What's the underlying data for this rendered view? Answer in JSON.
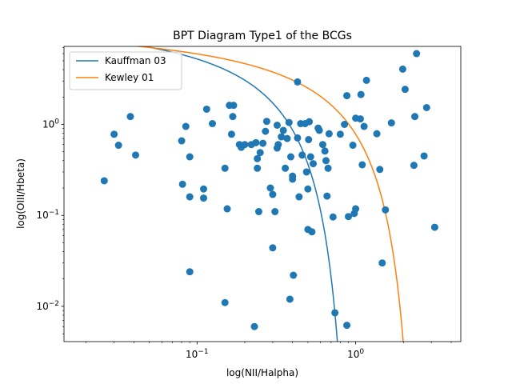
{
  "chart_data": {
    "type": "scatter",
    "title": "BPT Diagram Type1 of the BCGs",
    "xlabel": "log(NII/Halpha)",
    "ylabel": "log(OIII/Hbeta)",
    "xscale": "log",
    "yscale": "log",
    "xlim": [
      0.0145,
      4.6
    ],
    "ylim": [
      0.0041,
      7.2
    ],
    "x_ticks": [
      {
        "value": 0.1,
        "base": "10",
        "exp": "−1"
      },
      {
        "value": 1,
        "base": "10",
        "exp": "0"
      }
    ],
    "y_ticks": [
      {
        "value": 0.01,
        "base": "10",
        "exp": "−2"
      },
      {
        "value": 0.1,
        "base": "10",
        "exp": "−1"
      },
      {
        "value": 1,
        "base": "10",
        "exp": "0"
      }
    ],
    "legend": {
      "position": "top-left",
      "entries": [
        {
          "label": "Kauffman 03",
          "color": "#1f77b4"
        },
        {
          "label": "Kewley 01",
          "color": "#ff7f0e"
        }
      ]
    },
    "curves": [
      {
        "label": "Kauffman 03",
        "color": "#1f77b4",
        "a": 0.61,
        "b": 0.05,
        "c": 1.3
      },
      {
        "label": "Kewley 01",
        "color": "#ff7f0e",
        "a": 0.61,
        "b": 0.47,
        "c": 1.19
      }
    ],
    "points_color": "#1f77b4",
    "points": [
      [
        0.026,
        0.24
      ],
      [
        0.03,
        0.78
      ],
      [
        0.032,
        0.59
      ],
      [
        0.038,
        1.22
      ],
      [
        0.041,
        0.46
      ],
      [
        0.08,
        0.66
      ],
      [
        0.081,
        0.22
      ],
      [
        0.085,
        0.95
      ],
      [
        0.09,
        0.44
      ],
      [
        0.09,
        0.16
      ],
      [
        0.09,
        0.024
      ],
      [
        0.11,
        0.195
      ],
      [
        0.11,
        0.155
      ],
      [
        0.115,
        1.47
      ],
      [
        0.125,
        1.02
      ],
      [
        0.15,
        0.33
      ],
      [
        0.15,
        0.011
      ],
      [
        0.155,
        0.118
      ],
      [
        0.16,
        1.62
      ],
      [
        0.165,
        0.78
      ],
      [
        0.168,
        1.22
      ],
      [
        0.17,
        1.62
      ],
      [
        0.185,
        0.6
      ],
      [
        0.19,
        0.56
      ],
      [
        0.2,
        0.6
      ],
      [
        0.22,
        0.6
      ],
      [
        0.23,
        0.006
      ],
      [
        0.235,
        0.63
      ],
      [
        0.24,
        0.42
      ],
      [
        0.24,
        0.33
      ],
      [
        0.245,
        0.11
      ],
      [
        0.25,
        0.49
      ],
      [
        0.26,
        0.62
      ],
      [
        0.27,
        0.84
      ],
      [
        0.275,
        1.08
      ],
      [
        0.29,
        0.2
      ],
      [
        0.3,
        0.17
      ],
      [
        0.3,
        0.044
      ],
      [
        0.31,
        0.11
      ],
      [
        0.32,
        0.98
      ],
      [
        0.32,
        0.55
      ],
      [
        0.325,
        0.6
      ],
      [
        0.34,
        0.73
      ],
      [
        0.35,
        0.86
      ],
      [
        0.36,
        0.33
      ],
      [
        0.37,
        0.7
      ],
      [
        0.38,
        1.05
      ],
      [
        0.385,
        0.012
      ],
      [
        0.39,
        0.44
      ],
      [
        0.4,
        0.27
      ],
      [
        0.4,
        0.25
      ],
      [
        0.405,
        0.022
      ],
      [
        0.43,
        2.93
      ],
      [
        0.43,
        0.71
      ],
      [
        0.44,
        0.16
      ],
      [
        0.45,
        1.02
      ],
      [
        0.46,
        0.46
      ],
      [
        0.48,
        1.02
      ],
      [
        0.49,
        0.3
      ],
      [
        0.5,
        0.07
      ],
      [
        0.5,
        0.195
      ],
      [
        0.505,
        0.68
      ],
      [
        0.51,
        1.07
      ],
      [
        0.52,
        0.44
      ],
      [
        0.53,
        0.066
      ],
      [
        0.54,
        0.37
      ],
      [
        0.58,
        0.91
      ],
      [
        0.59,
        0.86
      ],
      [
        0.62,
        0.6
      ],
      [
        0.64,
        0.51
      ],
      [
        0.65,
        0.4
      ],
      [
        0.66,
        0.163
      ],
      [
        0.67,
        0.33
      ],
      [
        0.68,
        0.79
      ],
      [
        0.72,
        0.096
      ],
      [
        0.74,
        0.0085
      ],
      [
        0.8,
        0.78
      ],
      [
        0.85,
        1.0
      ],
      [
        0.88,
        0.0062
      ],
      [
        0.88,
        2.07
      ],
      [
        0.9,
        0.097
      ],
      [
        0.96,
        0.59
      ],
      [
        0.98,
        0.105
      ],
      [
        1.0,
        0.118
      ],
      [
        1.0,
        1.17
      ],
      [
        1.07,
        1.15
      ],
      [
        1.08,
        2.13
      ],
      [
        1.1,
        0.36
      ],
      [
        1.13,
        0.95
      ],
      [
        1.17,
        3.05
      ],
      [
        1.36,
        0.79
      ],
      [
        1.42,
        0.32
      ],
      [
        1.47,
        0.03
      ],
      [
        1.54,
        0.115
      ],
      [
        1.68,
        1.04
      ],
      [
        1.98,
        4.05
      ],
      [
        2.05,
        2.43
      ],
      [
        2.33,
        0.355
      ],
      [
        2.36,
        1.22
      ],
      [
        2.42,
        6.0
      ],
      [
        2.7,
        0.45
      ],
      [
        2.8,
        1.53
      ],
      [
        3.15,
        0.074
      ]
    ]
  }
}
